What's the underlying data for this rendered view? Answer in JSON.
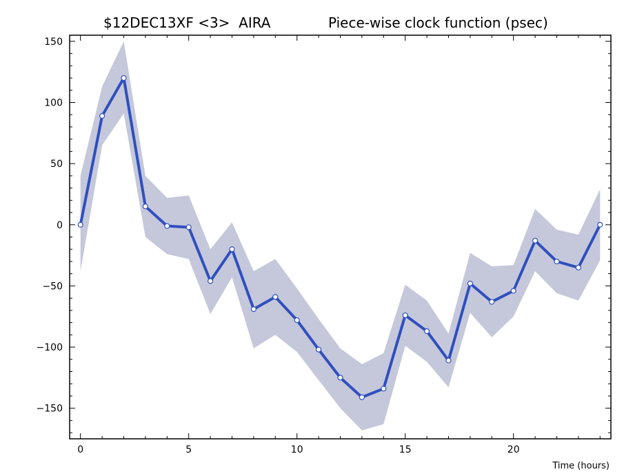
{
  "chart_data": {
    "type": "line",
    "title_left": "$12DEC13XF <3>  AIRA",
    "title_right": "Piece-wise clock function (psec)",
    "xlabel": "Time (hours)",
    "ylabel": "",
    "xlim": [
      -0.5,
      24.5
    ],
    "ylim": [
      -175,
      155
    ],
    "x_ticks": [
      0,
      5,
      10,
      15,
      20
    ],
    "y_ticks": [
      150,
      100,
      50,
      0,
      -50,
      -100,
      -150
    ],
    "x_tick_labels": [
      "0",
      "5",
      "10",
      "15",
      "20"
    ],
    "y_tick_labels": [
      "150",
      "100",
      "50",
      "0",
      "−50",
      "−100",
      "−150"
    ],
    "grid": false,
    "series": [
      {
        "x": [
          0,
          1,
          2,
          3,
          4,
          5,
          6,
          7,
          8,
          9,
          10,
          11,
          12,
          13,
          14,
          15,
          16,
          17,
          18,
          19,
          20,
          21,
          22,
          23,
          24
        ],
        "values": [
          0,
          89,
          120,
          15,
          -1,
          -2,
          -46,
          -20,
          -69,
          -59,
          -78,
          -102,
          -125,
          -141,
          -134,
          -74,
          -87,
          -111,
          -48,
          -63,
          -54,
          -13,
          -30,
          -35,
          0
        ],
        "band_upper": [
          40,
          113,
          150,
          40,
          22,
          24,
          -20,
          2,
          -38,
          -28,
          -52,
          -77,
          -101,
          -114,
          -105,
          -49,
          -62,
          -89,
          -23,
          -34,
          -33,
          13,
          -4,
          -8,
          29
        ],
        "band_lower": [
          -38,
          65,
          91,
          -10,
          -24,
          -28,
          -73,
          -43,
          -101,
          -90,
          -104,
          -127,
          -150,
          -168,
          -163,
          -99,
          -112,
          -133,
          -72,
          -92,
          -75,
          -38,
          -56,
          -62,
          -29
        ],
        "line_color": "#2f4fbf",
        "band_color": "#c5c8da",
        "marker_fill": "#ffffff"
      }
    ]
  }
}
